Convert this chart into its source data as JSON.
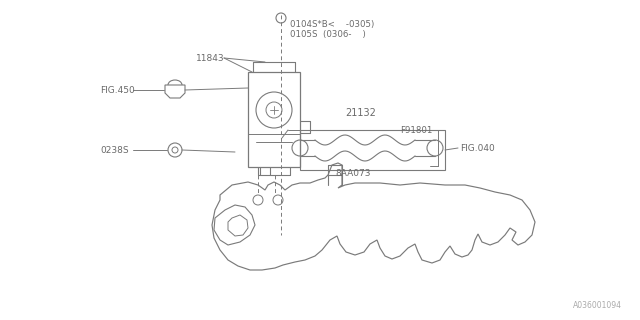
{
  "bg_color": "#ffffff",
  "line_color": "#7a7a7a",
  "text_color": "#6a6a6a",
  "fig_width": 6.4,
  "fig_height": 3.2,
  "dpi": 100,
  "watermark": "A036001094",
  "labels": {
    "top_line1": "0104S*B<    -0305)",
    "top_line2": "0105S  (0306-    )",
    "part_11843": "11843",
    "part_fig450": "FIG.450",
    "part_21132": "21132",
    "part_f91801": "F91801",
    "part_fig040": "FIG.040",
    "part_8aa073": "8AA073",
    "part_0238s": "0238S"
  }
}
